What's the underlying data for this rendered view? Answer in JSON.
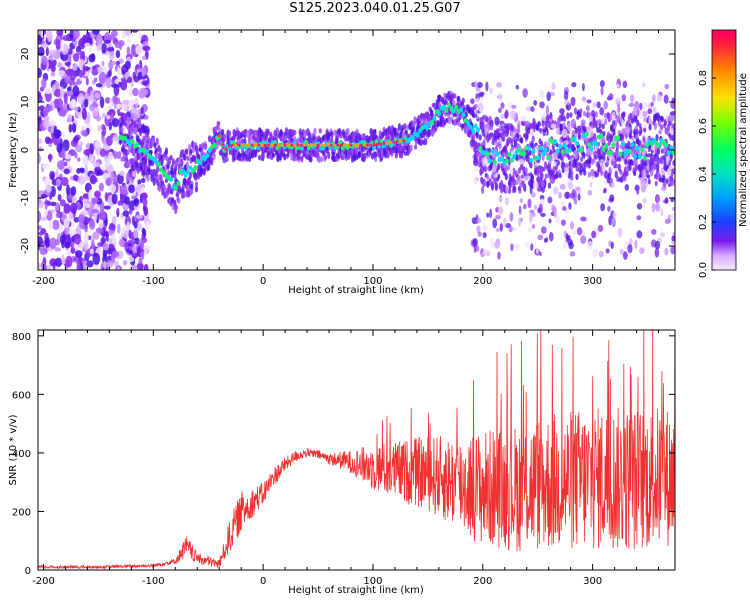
{
  "figure": {
    "title": "S125.2023.040.01.25.G07"
  },
  "colors": {
    "snr_line": "#f03030",
    "axis": "#000000",
    "ridge_core": "#ff2060",
    "colormap": [
      "#f4eaff",
      "#d7a8ff",
      "#b060ff",
      "#7a1cf0",
      "#4a10e0",
      "#1a40ff",
      "#00c0ff",
      "#00ff80",
      "#b0ff00",
      "#ffd000",
      "#ff6000",
      "#ff0050"
    ]
  },
  "chart_data": [
    {
      "type": "heatmap",
      "xlabel": "Height of straight line (km)",
      "ylabel": "Frequency (Hz)",
      "xlim": [
        -205,
        375
      ],
      "ylim": [
        -25,
        25
      ],
      "xticks": [
        -200,
        -100,
        0,
        100,
        200,
        300
      ],
      "yticks": [
        -20,
        -10,
        0,
        10,
        20
      ],
      "colorbar": {
        "label": "Normalized spectral amplitude",
        "range": [
          0,
          1
        ],
        "ticks": [
          0.0,
          0.2,
          0.4,
          0.6,
          0.8
        ]
      },
      "ridge": {
        "x": [
          -130,
          -110,
          -95,
          -85,
          -80,
          -75,
          -70,
          -60,
          -50,
          -45,
          -40,
          -35,
          -30,
          -20,
          0,
          50,
          100,
          130,
          150,
          160,
          170,
          180,
          190,
          200,
          220,
          260,
          300,
          340,
          375
        ],
        "y": [
          3,
          0,
          -3,
          -6,
          -8,
          -5,
          -5,
          -3,
          -1,
          1,
          3,
          0,
          1,
          1,
          1,
          1,
          1,
          2,
          5,
          8,
          9,
          8,
          5,
          0,
          -2,
          0,
          2,
          0,
          0
        ]
      },
      "grid": false,
      "legend": "colorbar-right"
    },
    {
      "type": "line",
      "xlabel": "Height of straight line (km)",
      "ylabel": "SNR (10 * v/v)",
      "xlim": [
        -205,
        375
      ],
      "ylim": [
        0,
        820
      ],
      "xticks": [
        -200,
        -100,
        0,
        100,
        200,
        300
      ],
      "yticks": [
        0,
        200,
        400,
        600,
        800
      ],
      "series": [
        {
          "x": [
            -200,
            -150,
            -100,
            -80,
            -70,
            -60,
            -40,
            -30,
            -20,
            -10,
            0,
            10,
            20,
            30,
            40,
            50,
            60,
            80,
            100,
            120,
            150,
            175,
            200,
            230,
            260,
            300,
            340,
            375
          ],
          "y": [
            10,
            10,
            15,
            30,
            80,
            40,
            20,
            120,
            200,
            230,
            260,
            320,
            360,
            390,
            400,
            395,
            380,
            370,
            350,
            340,
            330,
            300,
            280,
            280,
            300,
            310,
            310,
            320
          ],
          "spread": [
            5,
            5,
            5,
            10,
            40,
            20,
            15,
            60,
            70,
            50,
            40,
            35,
            25,
            20,
            15,
            15,
            20,
            40,
            80,
            100,
            130,
            160,
            200,
            220,
            240,
            250,
            250,
            240
          ]
        }
      ],
      "grid": false
    }
  ]
}
